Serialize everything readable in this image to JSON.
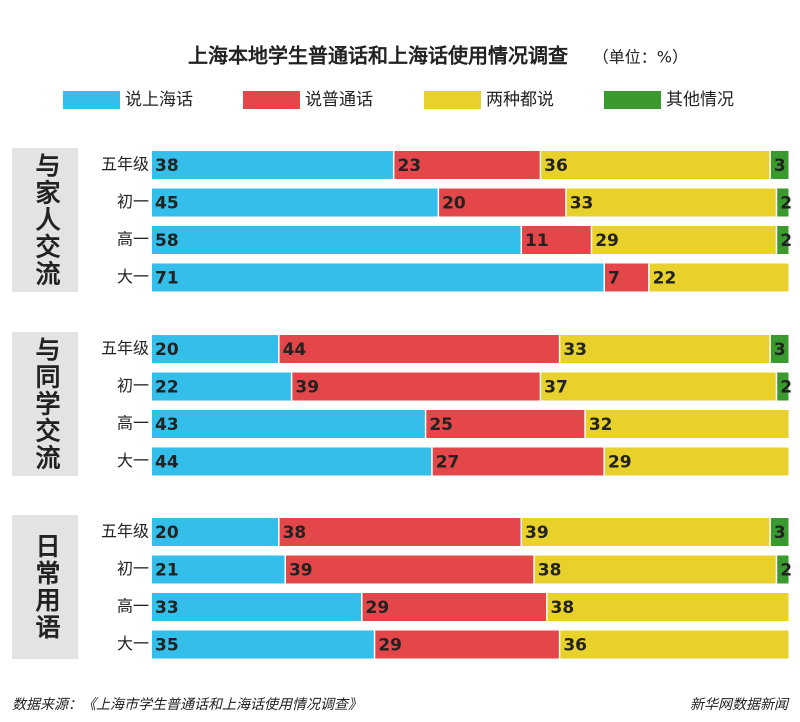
{
  "header": {
    "title": "上海本地学生普通话和上海话使用情况调查",
    "unit": "（单位：%）"
  },
  "chart_data": [
    {
      "type": "bar",
      "group_label": "与家人交流",
      "categories": [
        "五年级",
        "初一",
        "高一",
        "大一"
      ],
      "xlim": [
        0,
        100
      ],
      "series": [
        {
          "name": "说上海话",
          "color": "#33bfe9",
          "values": [
            38,
            45,
            58,
            71
          ]
        },
        {
          "name": "说普通话",
          "color": "#e4474a",
          "values": [
            23,
            20,
            11,
            7
          ]
        },
        {
          "name": "两种都说",
          "color": "#e8d12b",
          "values": [
            36,
            33,
            29,
            22
          ]
        },
        {
          "name": "其他情况",
          "color": "#3a9a2e",
          "values": [
            3,
            2,
            2,
            0
          ]
        }
      ]
    },
    {
      "type": "bar",
      "group_label": "与同学交流",
      "categories": [
        "五年级",
        "初一",
        "高一",
        "大一"
      ],
      "xlim": [
        0,
        100
      ],
      "series": [
        {
          "name": "说上海话",
          "color": "#33bfe9",
          "values": [
            20,
            22,
            43,
            44
          ]
        },
        {
          "name": "说普通话",
          "color": "#e4474a",
          "values": [
            44,
            39,
            25,
            27
          ]
        },
        {
          "name": "两种都说",
          "color": "#e8d12b",
          "values": [
            33,
            37,
            32,
            29
          ]
        },
        {
          "name": "其他情况",
          "color": "#3a9a2e",
          "values": [
            3,
            2,
            0,
            0
          ]
        }
      ]
    },
    {
      "type": "bar",
      "group_label": "日常用语",
      "categories": [
        "五年级",
        "初一",
        "高一",
        "大一"
      ],
      "xlim": [
        0,
        100
      ],
      "series": [
        {
          "name": "说上海话",
          "color": "#33bfe9",
          "values": [
            20,
            21,
            33,
            35
          ]
        },
        {
          "name": "说普通话",
          "color": "#e4474a",
          "values": [
            38,
            39,
            29,
            29
          ]
        },
        {
          "name": "两种都说",
          "color": "#e8d12b",
          "values": [
            39,
            38,
            38,
            36
          ]
        },
        {
          "name": "其他情况",
          "color": "#3a9a2e",
          "values": [
            3,
            2,
            0,
            0
          ]
        }
      ]
    }
  ],
  "footer": {
    "source": "数据来源：《上海市学生普通话和上海话使用情况调查》",
    "credit": "新华网数据新闻"
  }
}
